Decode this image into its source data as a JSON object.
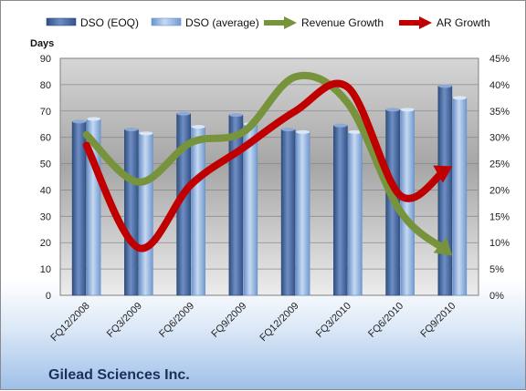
{
  "chart_data": {
    "type": "bar",
    "categories": [
      "FQ12/2008",
      "FQ3/2009",
      "FQ6/2009",
      "FQ9/2009",
      "FQ12/2009",
      "FQ3/2010",
      "FQ6/2010",
      "FQ9/2010"
    ],
    "y_left": {
      "label": "Days",
      "range": [
        0,
        90
      ],
      "ticks": [
        "0",
        "10",
        "20",
        "30",
        "40",
        "50",
        "60",
        "70",
        "80",
        "90"
      ]
    },
    "y_right": {
      "label": "",
      "range": [
        0,
        45
      ],
      "ticks": [
        "0%",
        "5%",
        "10%",
        "15%",
        "20%",
        "25%",
        "30%",
        "35%",
        "40%",
        "45%"
      ]
    },
    "series": [
      {
        "name": "DSO (EOQ)",
        "type": "bar",
        "axis": "left",
        "color": "#4a6ea9",
        "values": [
          66,
          63,
          69,
          68.5,
          63,
          64.5,
          70.5,
          79.5
        ]
      },
      {
        "name": "DSO (average)",
        "type": "bar",
        "axis": "left",
        "color": "#8fb2df",
        "values": [
          67,
          61.5,
          64,
          65,
          62,
          62,
          70.5,
          75
        ]
      },
      {
        "name": "Revenue Growth",
        "type": "line",
        "axis": "right",
        "color": "#77933c",
        "values": [
          30.5,
          21.5,
          29,
          31,
          41.5,
          36.5,
          16,
          7.5
        ]
      },
      {
        "name": "AR Growth",
        "type": "line",
        "axis": "right",
        "color": "#c00000",
        "values": [
          28.5,
          9,
          21,
          28,
          35,
          39.5,
          19,
          24.5
        ]
      }
    ],
    "grid": true,
    "legend": "top"
  },
  "footer": {
    "company": "Gilead Sciences Inc."
  }
}
